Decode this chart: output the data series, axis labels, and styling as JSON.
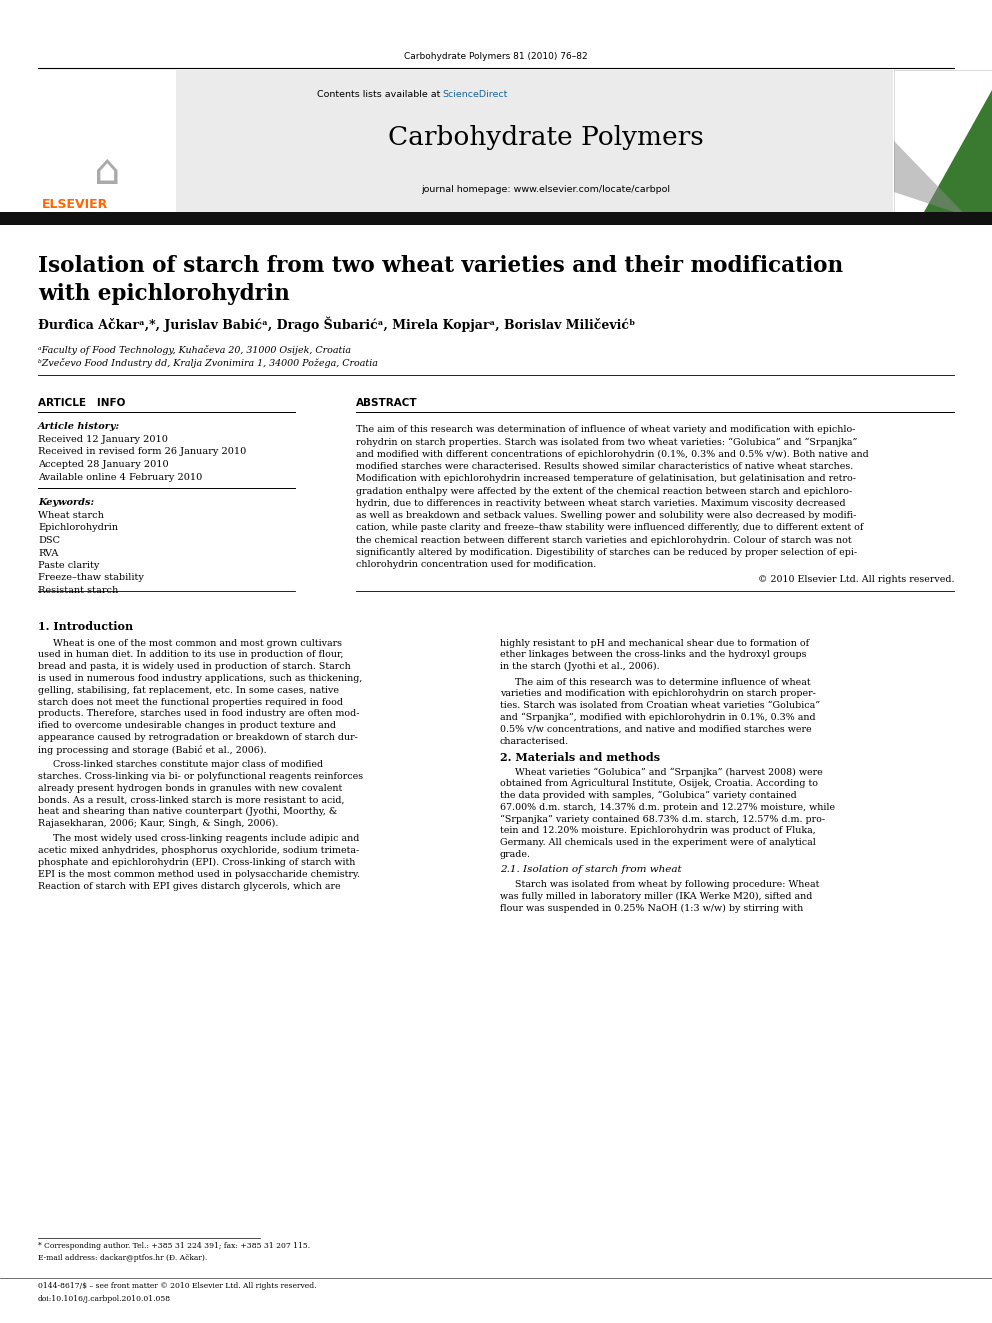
{
  "page_width": 9.92,
  "page_height": 13.23,
  "bg_color": "#ffffff",
  "header_journal": "Carbohydrate Polymers 81 (2010) 76–82",
  "header_contents": "Contents lists available at ",
  "header_sciencedirect": "ScienceDirect",
  "header_journal_name": "Carbohydrate Polymers",
  "header_homepage": "journal homepage: www.elsevier.com/locate/carbpol",
  "article_title_line1": "Isolation of starch from two wheat varieties and their modification",
  "article_title_line2": "with epichlorohydrin",
  "authors": "Đurđica Ačkarᵃ,*, Jurislav Babićᵃ, Drago Šubarićᵃ, Mirela Kopjarᵃ, Borislav Miličevićᵇ",
  "affil_a": "ᵃFaculty of Food Technology, Kuhačeva 20, 31000 Osijek, Croatia",
  "affil_b": "ᵇZvečevo Food Industry dd, Kralja Zvonimira 1, 34000 Požega, Croatia",
  "article_info_title": "ARTICLE   INFO",
  "article_history_title": "Article history:",
  "article_history_lines": [
    "Received 12 January 2010",
    "Received in revised form 26 January 2010",
    "Accepted 28 January 2010",
    "Available online 4 February 2010"
  ],
  "keywords_title": "Keywords:",
  "keywords_lines": [
    "Wheat starch",
    "Epichlorohydrin",
    "DSC",
    "RVA",
    "Paste clarity",
    "Freeze–thaw stability",
    "Resistant starch"
  ],
  "abstract_title": "ABSTRACT",
  "abstract_text_lines": [
    "The aim of this research was determination of influence of wheat variety and modification with epichlo-",
    "rohydrin on starch properties. Starch was isolated from two wheat varieties: “Golubica” and “Srpanjka”",
    "and modified with different concentrations of epichlorohydrin (0.1%, 0.3% and 0.5% v/w). Both native and",
    "modified starches were characterised. Results showed similar characteristics of native wheat starches.",
    "Modification with epichlorohydrin increased temperature of gelatinisation, but gelatinisation and retro-",
    "gradation enthalpy were affected by the extent of the chemical reaction between starch and epichloro-",
    "hydrin, due to differences in reactivity between wheat starch varieties. Maximum viscosity decreased",
    "as well as breakdown and setback values. Swelling power and solubility were also decreased by modifi-",
    "cation, while paste clarity and freeze–thaw stability were influenced differently, due to different extent of",
    "the chemical reaction between different starch varieties and epichlorohydrin. Colour of starch was not",
    "significantly altered by modification. Digestibility of starches can be reduced by proper selection of epi-",
    "chlorohydrin concentration used for modification."
  ],
  "copyright_text": "© 2010 Elsevier Ltd. All rights reserved.",
  "intro_title": "1. Introduction",
  "intro_col1_lines": [
    "    Wheat is one of the most common and most grown cultivars",
    "used in human diet. In addition to its use in production of flour,",
    "bread and pasta, it is widely used in production of starch. Starch",
    "is used in numerous food industry applications, such as thickening,",
    "gelling, stabilising, fat replacement, etc. In some cases, native",
    "starch does not meet the functional properties required in food",
    "products. Therefore, starches used in food industry are often mod-",
    "ified to overcome undesirable changes in product texture and",
    "appearance caused by retrogradation or breakdown of starch dur-",
    "ing processing and storage (Babić et al., 2006).",
    "",
    "    Cross-linked starches constitute major class of modified",
    "starches. Cross-linking via bi- or polyfunctional reagents reinforces",
    "already present hydrogen bonds in granules with new covalent",
    "bonds. As a result, cross-linked starch is more resistant to acid,",
    "heat and shearing than native counterpart (Jyothi, Moorthy, &",
    "Rajasekharan, 2006; Kaur, Singh, & Singh, 2006).",
    "",
    "    The most widely used cross-linking reagents include adipic and",
    "acetic mixed anhydrides, phosphorus oxychloride, sodium trimeta-",
    "phosphate and epichlorohydrin (EPI). Cross-linking of starch with",
    "EPI is the most common method used in polysaccharide chemistry.",
    "Reaction of starch with EPI gives distarch glycerols, which are"
  ],
  "intro_col2_lines": [
    "highly resistant to pH and mechanical shear due to formation of",
    "ether linkages between the cross-links and the hydroxyl groups",
    "in the starch (Jyothi et al., 2006).",
    "",
    "    The aim of this research was to determine influence of wheat",
    "varieties and modification with epichlorohydrin on starch proper-",
    "ties. Starch was isolated from Croatian wheat varieties “Golubica”",
    "and “Srpanjka”, modified with epichlorohydrin in 0.1%, 0.3% and",
    "0.5% v/w concentrations, and native and modified starches were",
    "characterised.",
    "",
    "2. Materials and methods",
    "",
    "    Wheat varieties “Golubica” and “Srpanjka” (harvest 2008) were",
    "obtained from Agricultural Institute, Osijek, Croatia. According to",
    "the data provided with samples, “Golubica” variety contained",
    "67.00% d.m. starch, 14.37% d.m. protein and 12.27% moisture, while",
    "“Srpanjka” variety contained 68.73% d.m. starch, 12.57% d.m. pro-",
    "tein and 12.20% moisture. Epichlorohydrin was product of Fluka,",
    "Germany. All chemicals used in the experiment were of analytical",
    "grade.",
    "",
    "2.1. Isolation of starch from wheat",
    "",
    "    Starch was isolated from wheat by following procedure: Wheat",
    "was fully milled in laboratory miller (IKA Werke M20), sifted and",
    "flour was suspended in 0.25% NaOH (1:3 w/w) by stirring with"
  ],
  "footnote_corresponding": "* Corresponding author. Tel.: +385 31 224 391; fax: +385 31 207 115.",
  "footnote_email": "E-mail address: dackar@ptfos.hr (Đ. Ačkar).",
  "footnote_issn": "0144-8617/$ – see front matter © 2010 Elsevier Ltd. All rights reserved.",
  "footnote_doi": "doi:10.1016/j.carbpol.2010.01.058",
  "elsevier_color": "#FF6600",
  "sciencedirect_color": "#1a6496",
  "link_color": "#1a6496",
  "header_bg": "#ebebeb",
  "black_bar_color": "#111111",
  "separator_color": "#000000",
  "cover_green": "#3a7a30",
  "cover_gray": "#888888"
}
